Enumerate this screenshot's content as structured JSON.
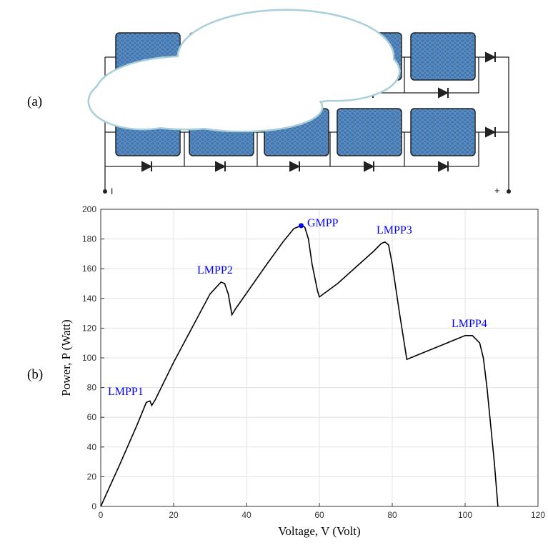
{
  "panel_labels": {
    "a": "(a)",
    "b": "(b)"
  },
  "diagram": {
    "negative_terminal": "I",
    "positive_terminal": "+"
  },
  "chart_data": {
    "type": "line",
    "xlabel": "Voltage, V (Volt)",
    "ylabel": "Power, P (Watt)",
    "xlim": [
      0,
      120
    ],
    "ylim": [
      0,
      200
    ],
    "xticks": [
      0,
      20,
      40,
      60,
      80,
      100,
      120
    ],
    "yticks": [
      0,
      20,
      40,
      60,
      80,
      100,
      120,
      140,
      160,
      180,
      200
    ],
    "grid": true,
    "color": "#000000",
    "x": [
      0,
      5,
      10,
      12.5,
      13.5,
      14,
      15,
      20,
      25,
      30,
      33,
      34,
      35,
      36,
      37,
      45,
      50,
      53,
      55,
      56,
      57,
      58,
      59.5,
      60,
      65,
      70,
      75,
      77,
      78,
      79,
      80,
      82,
      84,
      90,
      95,
      100,
      102,
      104,
      105,
      106,
      107,
      108,
      109
    ],
    "values": [
      0,
      27,
      55,
      70,
      71,
      68,
      72,
      97,
      120,
      143,
      151,
      150,
      143,
      129,
      133,
      161,
      178,
      187,
      189,
      188,
      180,
      163,
      145,
      141,
      150,
      161,
      172,
      177,
      178,
      176,
      163,
      130,
      99,
      105,
      110,
      115,
      115,
      110,
      100,
      80,
      55,
      30,
      0
    ],
    "gmpp": {
      "x": 55,
      "y": 189,
      "color": "#0000ff"
    },
    "annotations": [
      "LMPP1",
      "LMPP2",
      "GMPP",
      "LMPP3",
      "LMPP4"
    ],
    "annotation_color": "#0000ff"
  }
}
